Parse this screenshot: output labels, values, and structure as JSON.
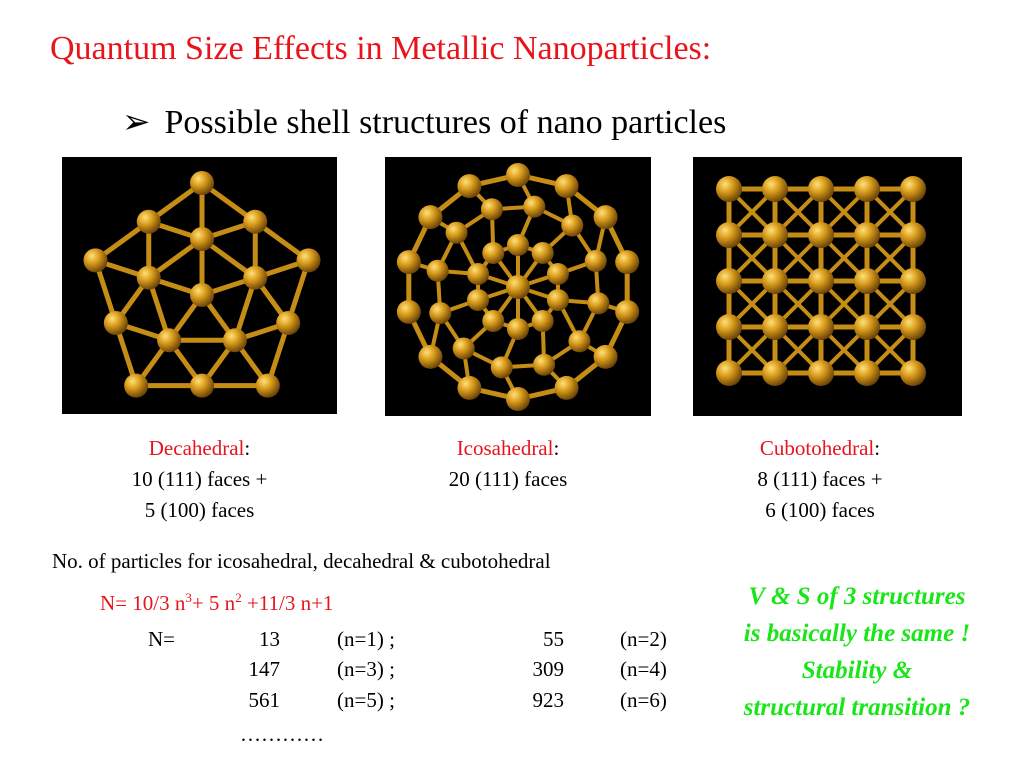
{
  "title": "Quantum Size Effects in Metallic Nanoparticles:",
  "bullet": {
    "arrow": "➢",
    "text": "Possible shell structures of nano particles"
  },
  "structures": [
    {
      "name": "Decahedral",
      "colon": ":",
      "line1": "10 (111) faces +",
      "line2": "5 (100) faces"
    },
    {
      "name": "Icosahedral",
      "colon": ":",
      "line1": "20 (111) faces",
      "line2": ""
    },
    {
      "name": "Cubotohedral",
      "colon": ":",
      "line1": "8 (111) faces +",
      "line2": "6 (100) faces"
    }
  ],
  "note": "No. of particles for icosahedral, decahedral & cubotohedral",
  "formula": {
    "p1": "N= 10/3 n",
    "sup1": "3",
    "p2": "+ 5 n",
    "sup2": "2",
    "p3": " +11/3 n+1"
  },
  "table": {
    "label": "N=",
    "rows": [
      {
        "v1": "13",
        "c1": "(n=1) ;",
        "v2": "55",
        "c2": "(n=2)"
      },
      {
        "v1": "147",
        "c1": "(n=3) ;",
        "v2": "309",
        "c2": "(n=4)"
      },
      {
        "v1": "561",
        "c1": "(n=5) ;",
        "v2": "923",
        "c2": "(n=6)"
      }
    ],
    "ellipsis": "…………"
  },
  "green_note": {
    "line1": "V & S of 3 structures",
    "line2": "is basically the same !",
    "line3": "Stability &",
    "line4": "structural transition ?"
  },
  "colors": {
    "title": "#e8141c",
    "green": "#19e619",
    "atom": "#d79a1a",
    "bond": "#c68d16"
  }
}
